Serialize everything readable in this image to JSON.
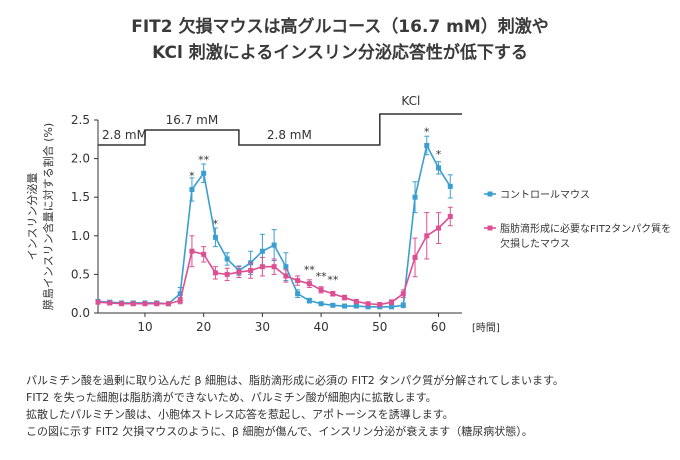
{
  "title_line1": "FIT2 欠損マウスは高グルコース（16.7 mM）刺激や",
  "title_line2": "KCl 刺激によるインスリン分泌応答性が低下する",
  "colors": {
    "control": "#3a9fd0",
    "deficient": "#dc4f93",
    "axis": "#333333",
    "stim": "#333333"
  },
  "chart_data": {
    "type": "line",
    "ylabel_lines": [
      "インスリン分泌量",
      "膵島インスリン含量に対する割合 (%)"
    ],
    "xlabel": "[時間]",
    "xlim": [
      2,
      64
    ],
    "ylim": [
      0,
      2.5
    ],
    "xticks": [
      10,
      20,
      30,
      40,
      50,
      60
    ],
    "yticks": [
      "0.0",
      "0.5",
      "1.0",
      "1.5",
      "2.0",
      "2.5"
    ],
    "stimulus": {
      "segments": [
        {
          "x0": 2,
          "x1": 10,
          "level": "low",
          "label": "2.8 mM"
        },
        {
          "x0": 10,
          "x1": 26,
          "level": "high",
          "label": "16.7 mM"
        },
        {
          "x0": 26,
          "x1": 50,
          "level": "low",
          "label": "2.8 mM"
        },
        {
          "x0": 50,
          "x1": 64,
          "level": "top",
          "label": "KCl"
        }
      ]
    },
    "series": [
      {
        "name": "コントロールマウス",
        "color": "#3a9fd0",
        "marker": "square",
        "x": [
          2,
          4,
          6,
          8,
          10,
          12,
          14,
          16,
          18,
          20,
          22,
          24,
          26,
          28,
          30,
          32,
          34,
          36,
          38,
          40,
          42,
          44,
          46,
          48,
          50,
          52,
          54,
          56,
          58,
          60,
          62
        ],
        "y": [
          0.15,
          0.14,
          0.13,
          0.13,
          0.13,
          0.13,
          0.12,
          0.25,
          1.6,
          1.81,
          0.98,
          0.7,
          0.55,
          0.65,
          0.8,
          0.88,
          0.6,
          0.25,
          0.16,
          0.12,
          0.1,
          0.09,
          0.09,
          0.08,
          0.08,
          0.08,
          0.1,
          1.5,
          2.17,
          1.88,
          1.64
        ],
        "err": [
          0.02,
          0.02,
          0.02,
          0.02,
          0.02,
          0.02,
          0.02,
          0.08,
          0.15,
          0.12,
          0.12,
          0.08,
          0.06,
          0.15,
          0.22,
          0.2,
          0.18,
          0.05,
          0.03,
          0.02,
          0.02,
          0.02,
          0.02,
          0.02,
          0.02,
          0.02,
          0.03,
          0.2,
          0.12,
          0.08,
          0.15
        ]
      },
      {
        "name": "脂肪滴形成に必要なFIT2タンパク質を欠損したマウス",
        "color": "#dc4f93",
        "marker": "square",
        "x": [
          2,
          4,
          6,
          8,
          10,
          12,
          14,
          16,
          18,
          20,
          22,
          24,
          26,
          28,
          30,
          32,
          34,
          36,
          38,
          40,
          42,
          44,
          46,
          48,
          50,
          52,
          54,
          56,
          58,
          60,
          62
        ],
        "y": [
          0.14,
          0.13,
          0.12,
          0.12,
          0.12,
          0.12,
          0.12,
          0.16,
          0.8,
          0.76,
          0.52,
          0.5,
          0.53,
          0.55,
          0.6,
          0.6,
          0.48,
          0.42,
          0.38,
          0.3,
          0.25,
          0.2,
          0.15,
          0.12,
          0.11,
          0.14,
          0.25,
          0.72,
          1.0,
          1.1,
          1.25
        ],
        "err": [
          0.02,
          0.02,
          0.02,
          0.02,
          0.02,
          0.02,
          0.02,
          0.04,
          0.2,
          0.1,
          0.08,
          0.08,
          0.07,
          0.1,
          0.12,
          0.1,
          0.08,
          0.06,
          0.05,
          0.04,
          0.03,
          0.03,
          0.02,
          0.02,
          0.02,
          0.03,
          0.05,
          0.25,
          0.3,
          0.2,
          0.12
        ]
      }
    ],
    "significance": [
      {
        "x": 18,
        "y": 1.6,
        "label": "*"
      },
      {
        "x": 20,
        "y": 1.81,
        "label": "**"
      },
      {
        "x": 22,
        "y": 0.98,
        "label": "*"
      },
      {
        "x": 38,
        "y": 0.38,
        "label": "**"
      },
      {
        "x": 40,
        "y": 0.3,
        "label": "**"
      },
      {
        "x": 42,
        "y": 0.25,
        "label": "**"
      },
      {
        "x": 58,
        "y": 2.17,
        "label": "*"
      },
      {
        "x": 60,
        "y": 1.88,
        "label": "*"
      }
    ],
    "legend": [
      {
        "label_lines": [
          "コントロールマウス"
        ],
        "color": "#3a9fd0"
      },
      {
        "label_lines": [
          "脂肪滴形成に必要なFIT2タンパク質を",
          "欠損したマウス"
        ],
        "color": "#dc4f93"
      }
    ],
    "legend_position": "right"
  },
  "notes": [
    "パルミチン酸を過剰に取り込んだ β 細胞は、脂肪滴形成に必須の FIT2 タンパク質が分解されてしまいます。",
    "FIT2 を失った細胞は脂肪滴ができないため、パルミチン酸が細胞内に拡散します。",
    "拡散したパルミチン酸は、小胞体ストレス応答を惹起し、アポトーシスを誘導します。",
    "この図に示す FIT2 欠損マウスのように、β 細胞が傷んで、インスリン分泌が衰えます（糖尿病状態）。"
  ]
}
